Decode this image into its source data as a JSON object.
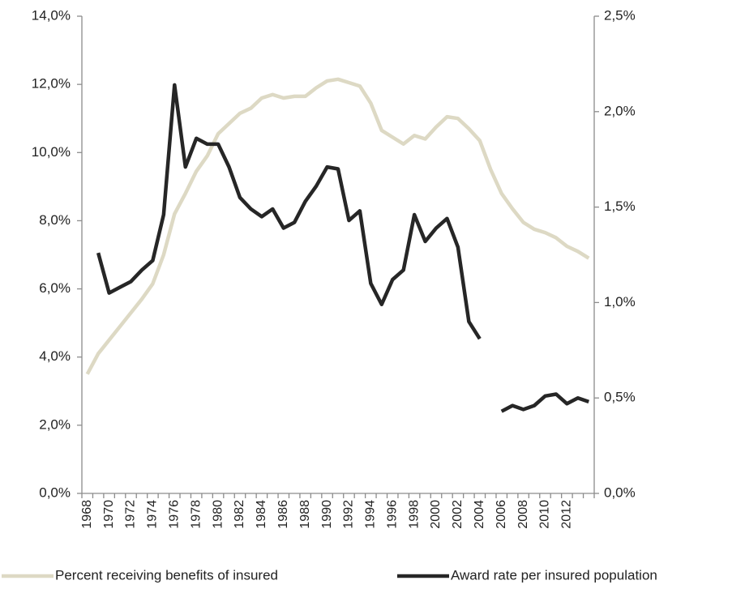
{
  "chart_data": {
    "type": "line",
    "categories": [
      "1968",
      null,
      "1970",
      null,
      "1972",
      null,
      "1974",
      null,
      "1976",
      null,
      "1978",
      null,
      "1980",
      null,
      "1982",
      null,
      "1984",
      null,
      "1986",
      null,
      "1988",
      null,
      "1990",
      null,
      "1992",
      null,
      "1994",
      null,
      "1996",
      null,
      "1998",
      null,
      "2000",
      null,
      "2002",
      null,
      "2004",
      null,
      "2006",
      null,
      "2008",
      null,
      "2010",
      null,
      "2012",
      null,
      null
    ],
    "series": [
      {
        "name": "Percent receiving benefits of insured",
        "color": "#ddd9c4",
        "values": [
          3.5,
          4.1,
          4.5,
          4.9,
          5.3,
          5.7,
          6.15,
          7.0,
          8.2,
          8.8,
          9.45,
          9.9,
          10.55,
          10.85,
          11.15,
          11.3,
          11.6,
          11.7,
          11.6,
          11.65,
          11.65,
          11.9,
          12.1,
          12.15,
          12.05,
          11.95,
          11.45,
          10.65,
          10.45,
          10.25,
          10.5,
          10.4,
          10.75,
          11.05,
          11.0,
          10.7,
          10.35,
          9.5,
          8.8,
          8.35,
          7.95,
          7.75,
          7.65,
          7.5,
          7.25,
          7.1,
          6.9
        ]
      },
      {
        "name": "Award rate per insured population",
        "color": "#262626",
        "axis": "y2",
        "values": [
          null,
          1.26,
          1.05,
          1.08,
          1.11,
          1.17,
          1.22,
          1.46,
          2.14,
          1.71,
          1.86,
          1.83,
          1.83,
          1.71,
          1.55,
          1.49,
          1.45,
          1.49,
          1.39,
          1.42,
          1.53,
          1.61,
          1.71,
          1.7,
          1.43,
          1.48,
          1.1,
          0.99,
          1.12,
          1.17,
          1.46,
          1.32,
          1.39,
          1.44,
          1.29,
          0.9,
          0.81,
          null,
          0.43,
          0.46,
          0.44,
          0.46,
          0.51,
          0.52,
          0.47,
          0.5,
          0.48
        ]
      }
    ],
    "ylim": [
      0,
      14
    ],
    "yticks": [
      {
        "value": 0,
        "label": "0,0%"
      },
      {
        "value": 2,
        "label": "2,0%"
      },
      {
        "value": 4,
        "label": "4,0%"
      },
      {
        "value": 6,
        "label": "6,0%"
      },
      {
        "value": 8,
        "label": "8,0%"
      },
      {
        "value": 10,
        "label": "10,0%"
      },
      {
        "value": 12,
        "label": "12,0%"
      },
      {
        "value": 14,
        "label": "14,0%"
      }
    ],
    "y2lim": [
      0,
      2.5
    ],
    "y2ticks": [
      {
        "value": 0,
        "label": "0,0%"
      },
      {
        "value": 0.5,
        "label": "0,5%"
      },
      {
        "value": 1,
        "label": "1,0%"
      },
      {
        "value": 1.5,
        "label": "1,5%"
      },
      {
        "value": 2,
        "label": "2,0%"
      },
      {
        "value": 2.5,
        "label": "2,5%"
      }
    ],
    "grid": false
  }
}
